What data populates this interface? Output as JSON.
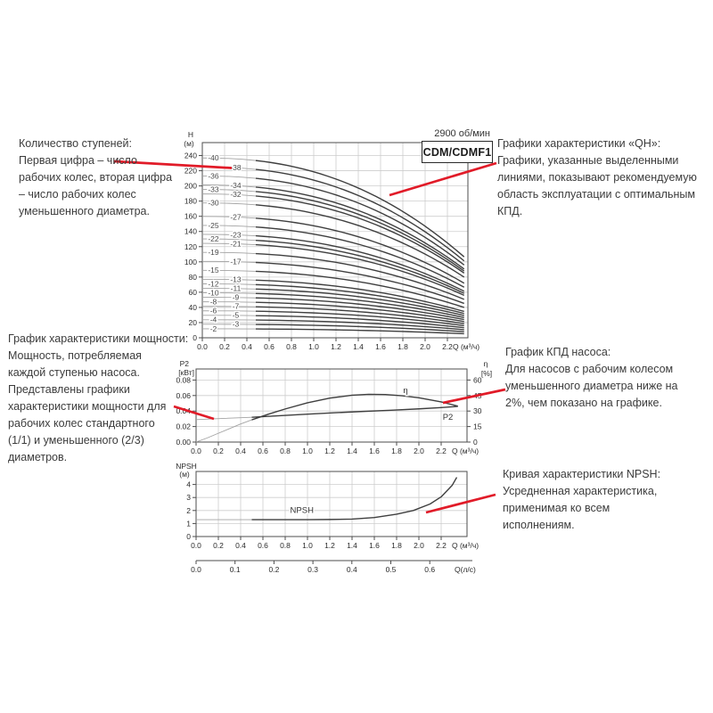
{
  "header": {
    "speed": "2900 об/мин",
    "model": "CDM/CDMF1"
  },
  "annotations": {
    "stages": {
      "title": "Количество ступеней:",
      "body": "Первая цифра – число рабочих колес, вторая цифра – число рабочих колес уменьшенного диаметра."
    },
    "qh": {
      "title": "Графики характеристики «QH»:",
      "body": "Графики, указанные выделенными линиями, показывают рекомендуемую область эксплуатации с оптимальным КПД."
    },
    "power": {
      "title": "График характеристики мощности:",
      "body": "Мощность, потребляемая каждой ступенью насоса. Представлены графики характеристики мощности для рабочих колес стандартного (1/1) и уменьшенного (2/3) диаметров."
    },
    "eff": {
      "title": "График КПД насоса:",
      "body": "Для насосов с рабочим колесом уменьшенного диаметра ниже на 2%, чем показано на графике."
    },
    "npsh": {
      "title": "Кривая характеристики NPSH:",
      "body": "Усредненная характеристика, применимая ко всем исполнениям."
    }
  },
  "colors": {
    "accent_red": "#e11b28",
    "curve_bold": "#3f3f3f",
    "curve_thin": "#a3a3a3",
    "grid": "#cdcdcd",
    "axis": "#4d4d4d",
    "tick_text": "#2b2b2b",
    "label_text": "#4a4a4a"
  },
  "chart_data": [
    {
      "id": "qh",
      "type": "line",
      "title": "CDM/CDMF1",
      "annotation": "2900 об/мин",
      "x": {
        "label": "Q (м³/ч)",
        "ticks": [
          "0.0",
          "0.2",
          "0.4",
          "0.6",
          "0.8",
          "1.0",
          "1.2",
          "1.4",
          "1.6",
          "1.8",
          "2.0",
          "2.2"
        ],
        "max": 2.39
      },
      "y": {
        "label_lines": [
          "H",
          "(м)"
        ],
        "ticks": [
          "0",
          "20",
          "40",
          "60",
          "80",
          "100",
          "120",
          "140",
          "160",
          "180",
          "200",
          "220",
          "240"
        ],
        "max": 257
      },
      "curve_model": {
        "q_end": 2.35,
        "droop": 0.55,
        "exp": 2.3,
        "bold_from": 0.48
      },
      "curves": [
        {
          "label": "-40",
          "h0": 236.8,
          "label_q": 0.1
        },
        {
          "label": "-38",
          "h0": 225.0,
          "label_q": 0.3
        },
        {
          "label": "-36",
          "h0": 213.1,
          "label_q": 0.1
        },
        {
          "label": "-34",
          "h0": 201.3,
          "label_q": 0.3
        },
        {
          "label": "-33",
          "h0": 195.4,
          "label_q": 0.1
        },
        {
          "label": "-32",
          "h0": 189.4,
          "label_q": 0.3
        },
        {
          "label": "-30",
          "h0": 177.6,
          "label_q": 0.1
        },
        {
          "label": "-27",
          "h0": 159.8,
          "label_q": 0.3
        },
        {
          "label": "-25",
          "h0": 148.0,
          "label_q": 0.1
        },
        {
          "label": "-23",
          "h0": 136.2,
          "label_q": 0.3
        },
        {
          "label": "-22",
          "h0": 130.2,
          "label_q": 0.1
        },
        {
          "label": "-21",
          "h0": 124.3,
          "label_q": 0.3
        },
        {
          "label": "-19",
          "h0": 112.5,
          "label_q": 0.1
        },
        {
          "label": "-17",
          "h0": 100.6,
          "label_q": 0.3
        },
        {
          "label": "-15",
          "h0": 88.8,
          "label_q": 0.1
        },
        {
          "label": "-13",
          "h0": 77.0,
          "label_q": 0.3
        },
        {
          "label": "-12",
          "h0": 71.0,
          "label_q": 0.1
        },
        {
          "label": "-11",
          "h0": 65.1,
          "label_q": 0.3
        },
        {
          "label": "-10",
          "h0": 59.2,
          "label_q": 0.1
        },
        {
          "label": "-9",
          "h0": 53.3,
          "label_q": 0.3
        },
        {
          "label": "-8",
          "h0": 47.4,
          "label_q": 0.1
        },
        {
          "label": "-7",
          "h0": 41.4,
          "label_q": 0.3
        },
        {
          "label": "-6",
          "h0": 35.5,
          "label_q": 0.1
        },
        {
          "label": "-5",
          "h0": 29.6,
          "label_q": 0.3
        },
        {
          "label": "-4",
          "h0": 23.7,
          "label_q": 0.1
        },
        {
          "label": "-3",
          "h0": 17.8,
          "label_q": 0.3
        },
        {
          "label": "-2",
          "h0": 11.8,
          "label_q": 0.1
        }
      ]
    },
    {
      "id": "p2",
      "type": "line",
      "x": {
        "label": "Q (м³/ч)",
        "ticks": [
          "0.0",
          "0.2",
          "0.4",
          "0.6",
          "0.8",
          "1.0",
          "1.2",
          "1.4",
          "1.6",
          "1.8",
          "2.0",
          "2.2"
        ],
        "max": 2.43
      },
      "y_left": {
        "label_lines": [
          "P2",
          "[кВт]"
        ],
        "ticks": [
          "0.00",
          "0.02",
          "0.04",
          "0.06",
          "0.08"
        ],
        "max": 0.094
      },
      "y_right": {
        "label_lines": [
          "η",
          "[%]"
        ],
        "ticks": [
          "0",
          "15",
          "30",
          "45",
          "60"
        ],
        "max": 70.5
      },
      "series": [
        {
          "name": "P2",
          "axis": "left",
          "bold_from": 0.5,
          "points": [
            [
              0,
              0.029
            ],
            [
              0.25,
              0.0305
            ],
            [
              0.5,
              0.032
            ],
            [
              0.75,
              0.034
            ],
            [
              1.0,
              0.036
            ],
            [
              1.25,
              0.0378
            ],
            [
              1.5,
              0.0395
            ],
            [
              1.75,
              0.041
            ],
            [
              2.0,
              0.0428
            ],
            [
              2.2,
              0.0445
            ],
            [
              2.35,
              0.046
            ]
          ],
          "label_at": [
            2.26,
            0.0285
          ]
        },
        {
          "name": "η",
          "axis": "right",
          "bold_from": 0.5,
          "points": [
            [
              0,
              0
            ],
            [
              0.1,
              4
            ],
            [
              0.2,
              8.5
            ],
            [
              0.3,
              13
            ],
            [
              0.4,
              17.5
            ],
            [
              0.5,
              21.5
            ],
            [
              0.65,
              27
            ],
            [
              0.8,
              32
            ],
            [
              1.0,
              38
            ],
            [
              1.2,
              42.5
            ],
            [
              1.4,
              45.3
            ],
            [
              1.55,
              46.2
            ],
            [
              1.7,
              46
            ],
            [
              1.85,
              44.8
            ],
            [
              2.0,
              42.8
            ],
            [
              2.2,
              38.8
            ],
            [
              2.35,
              34.8
            ]
          ],
          "label_at": [
            1.88,
            47.5
          ]
        }
      ]
    },
    {
      "id": "npsh",
      "type": "line",
      "x": {
        "label": "Q (м³/ч)",
        "ticks": [
          "0.0",
          "0.2",
          "0.4",
          "0.6",
          "0.8",
          "1.0",
          "1.2",
          "1.4",
          "1.6",
          "1.8",
          "2.0",
          "2.2"
        ],
        "max": 2.43
      },
      "x2": {
        "label": "Q(л/с)",
        "ticks": [
          "0.0",
          "0.1",
          "0.2",
          "0.3",
          "0.4",
          "0.5",
          "0.6"
        ]
      },
      "y": {
        "label_lines": [
          "NPSH",
          "(м)"
        ],
        "ticks": [
          "0",
          "1",
          "2",
          "3",
          "4"
        ],
        "max": 5.0
      },
      "series": [
        {
          "name": "NPSH",
          "axis": "left",
          "bold_from": 0.5,
          "points": [
            [
              0,
              1.3
            ],
            [
              0.5,
              1.3
            ],
            [
              0.8,
              1.3
            ],
            [
              1.0,
              1.3
            ],
            [
              1.2,
              1.31
            ],
            [
              1.4,
              1.34
            ],
            [
              1.6,
              1.46
            ],
            [
              1.8,
              1.72
            ],
            [
              1.95,
              2.0
            ],
            [
              2.1,
              2.5
            ],
            [
              2.2,
              3.05
            ],
            [
              2.3,
              3.95
            ],
            [
              2.34,
              4.55
            ]
          ],
          "label_at": [
            0.95,
            1.82
          ]
        }
      ]
    }
  ]
}
